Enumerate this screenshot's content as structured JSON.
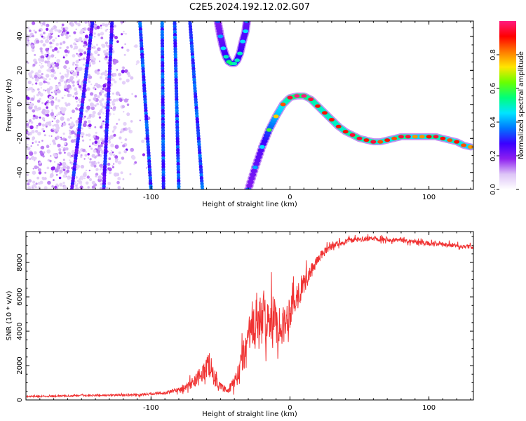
{
  "title": "C2E5.2024.192.12.02.G07",
  "colors": {
    "line": "#f03232",
    "axis": "#000000",
    "colormap": [
      "#ffffff",
      "#ddc4f7",
      "#8e1ff0",
      "#3a00ff",
      "#0077ff",
      "#00e5ff",
      "#00ff7a",
      "#6aff00",
      "#ffe600",
      "#ff7a00",
      "#ff0000",
      "#ff1a7f"
    ]
  },
  "chart_data": [
    {
      "type": "heatmap",
      "title": "C2E5.2024.192.12.02.G07",
      "xlabel": "Height of straight line (km)",
      "ylabel": "Frequency (Hz)",
      "xlim": [
        -190,
        132
      ],
      "ylim": [
        -50,
        49
      ],
      "xticks": [
        -100,
        0,
        100
      ],
      "yticks": [
        -40,
        -20,
        0,
        20,
        40
      ],
      "colorbar": {
        "label": "Normalized spectral amplitude",
        "range": [
          0,
          1
        ],
        "ticks": [
          "0.0",
          "0.2",
          "0.4",
          "0.6",
          "0.8"
        ],
        "tick_values": [
          0,
          0.2,
          0.4,
          0.6,
          0.8
        ]
      },
      "main_trace": [
        {
          "x": -30,
          "y": -50,
          "a": 0.35
        },
        {
          "x": -25,
          "y": -37,
          "a": 0.4
        },
        {
          "x": -20,
          "y": -25,
          "a": 0.45
        },
        {
          "x": -15,
          "y": -15,
          "a": 0.6
        },
        {
          "x": -10,
          "y": -7,
          "a": 0.75
        },
        {
          "x": -5,
          "y": 0,
          "a": 0.85
        },
        {
          "x": 0,
          "y": 4,
          "a": 0.95
        },
        {
          "x": 5,
          "y": 5,
          "a": 1.0
        },
        {
          "x": 10,
          "y": 5,
          "a": 1.0
        },
        {
          "x": 15,
          "y": 3,
          "a": 0.95
        },
        {
          "x": 20,
          "y": -1,
          "a": 0.9
        },
        {
          "x": 25,
          "y": -5,
          "a": 0.9
        },
        {
          "x": 30,
          "y": -9,
          "a": 0.9
        },
        {
          "x": 35,
          "y": -13,
          "a": 0.9
        },
        {
          "x": 40,
          "y": -16,
          "a": 0.9
        },
        {
          "x": 45,
          "y": -18,
          "a": 0.95
        },
        {
          "x": 50,
          "y": -20,
          "a": 0.95
        },
        {
          "x": 55,
          "y": -21,
          "a": 0.9
        },
        {
          "x": 60,
          "y": -22,
          "a": 0.95
        },
        {
          "x": 65,
          "y": -22,
          "a": 0.85
        },
        {
          "x": 70,
          "y": -21,
          "a": 0.9
        },
        {
          "x": 75,
          "y": -20,
          "a": 0.85
        },
        {
          "x": 80,
          "y": -19,
          "a": 0.95
        },
        {
          "x": 85,
          "y": -19,
          "a": 0.95
        },
        {
          "x": 90,
          "y": -19,
          "a": 0.8
        },
        {
          "x": 95,
          "y": -19,
          "a": 0.8
        },
        {
          "x": 100,
          "y": -19,
          "a": 0.9
        },
        {
          "x": 105,
          "y": -19,
          "a": 0.95
        },
        {
          "x": 110,
          "y": -20,
          "a": 0.9
        },
        {
          "x": 115,
          "y": -21,
          "a": 0.85
        },
        {
          "x": 120,
          "y": -22,
          "a": 0.9
        },
        {
          "x": 125,
          "y": -24,
          "a": 0.85
        },
        {
          "x": 130,
          "y": -25,
          "a": 0.8
        }
      ],
      "upper_trace": [
        {
          "x": -52,
          "y": 49,
          "a": 0.35
        },
        {
          "x": -50,
          "y": 40,
          "a": 0.4
        },
        {
          "x": -48,
          "y": 33,
          "a": 0.45
        },
        {
          "x": -46,
          "y": 28,
          "a": 0.5
        },
        {
          "x": -44,
          "y": 25,
          "a": 0.55
        },
        {
          "x": -42,
          "y": 24,
          "a": 0.55
        },
        {
          "x": -40,
          "y": 24,
          "a": 0.5
        },
        {
          "x": -38,
          "y": 26,
          "a": 0.5
        },
        {
          "x": -36,
          "y": 30,
          "a": 0.5
        },
        {
          "x": -34,
          "y": 37,
          "a": 0.45
        },
        {
          "x": -32,
          "y": 43,
          "a": 0.45
        },
        {
          "x": -31,
          "y": 49,
          "a": 0.4
        }
      ],
      "streaks": [
        {
          "x_top": -108,
          "x_bottom": -100,
          "a": 0.3
        },
        {
          "x_top": -92,
          "x_bottom": -91,
          "a": 0.3
        },
        {
          "x_top": -83,
          "x_bottom": -80,
          "a": 0.3
        },
        {
          "x_top": -72,
          "x_bottom": -63,
          "a": 0.3
        },
        {
          "x_top": -142,
          "x_bottom": -157,
          "a": 0.25
        },
        {
          "x_top": -128,
          "x_bottom": -134,
          "a": 0.25
        }
      ],
      "noise_region": {
        "x": [
          -190,
          -100
        ],
        "y": [
          -50,
          49
        ]
      }
    },
    {
      "type": "line",
      "xlabel": "Height of straight line (km)",
      "ylabel": "SNR (10 * v/v)",
      "xlim": [
        -190,
        132
      ],
      "ylim": [
        0,
        9800
      ],
      "xticks": [
        -100,
        0,
        100
      ],
      "yticks": [
        0,
        2000,
        4000,
        6000,
        8000
      ],
      "series": [
        {
          "color": "#f03232",
          "envelope": [
            {
              "x": -190,
              "y": 200,
              "amp": 80
            },
            {
              "x": -150,
              "y": 250,
              "amp": 100
            },
            {
              "x": -110,
              "y": 300,
              "amp": 120
            },
            {
              "x": -90,
              "y": 400,
              "amp": 150
            },
            {
              "x": -75,
              "y": 700,
              "amp": 400
            },
            {
              "x": -65,
              "y": 1400,
              "amp": 900
            },
            {
              "x": -58,
              "y": 2100,
              "amp": 1500
            },
            {
              "x": -52,
              "y": 900,
              "amp": 500
            },
            {
              "x": -45,
              "y": 500,
              "amp": 300
            },
            {
              "x": -38,
              "y": 1200,
              "amp": 1200
            },
            {
              "x": -32,
              "y": 3000,
              "amp": 2500
            },
            {
              "x": -27,
              "y": 4200,
              "amp": 3500
            },
            {
              "x": -20,
              "y": 4600,
              "amp": 3000
            },
            {
              "x": -12,
              "y": 4700,
              "amp": 2700
            },
            {
              "x": -5,
              "y": 4300,
              "amp": 2200
            },
            {
              "x": 2,
              "y": 5600,
              "amp": 2000
            },
            {
              "x": 8,
              "y": 6500,
              "amp": 1500
            },
            {
              "x": 14,
              "y": 7300,
              "amp": 900
            },
            {
              "x": 20,
              "y": 8200,
              "amp": 600
            },
            {
              "x": 30,
              "y": 9000,
              "amp": 400
            },
            {
              "x": 45,
              "y": 9300,
              "amp": 300
            },
            {
              "x": 60,
              "y": 9400,
              "amp": 280
            },
            {
              "x": 80,
              "y": 9300,
              "amp": 250
            },
            {
              "x": 100,
              "y": 9100,
              "amp": 250
            },
            {
              "x": 115,
              "y": 9000,
              "amp": 250
            },
            {
              "x": 132,
              "y": 8900,
              "amp": 250
            }
          ]
        }
      ]
    }
  ]
}
